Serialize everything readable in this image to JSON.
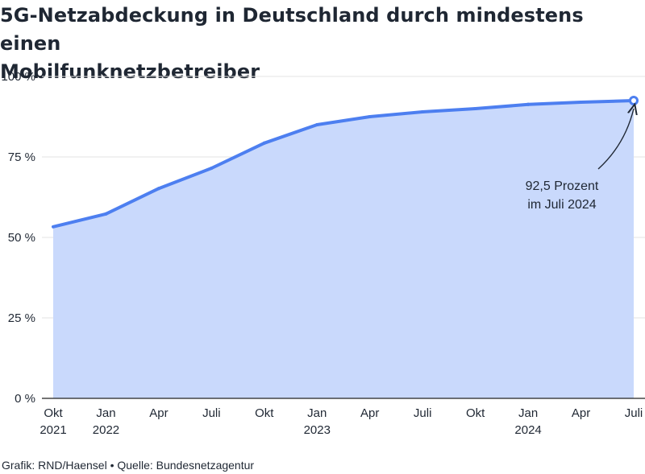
{
  "chart_data": {
    "type": "area",
    "title_lines": [
      "5G-Netzabdeckung in Deutschland durch mindestens einen",
      "Mobilfunknetzbetreiber"
    ],
    "x": [
      "Okt 2021",
      "Jan 2022",
      "Apr 2022",
      "Juli 2022",
      "Okt 2022",
      "Jan 2023",
      "Apr 2023",
      "Juli 2023",
      "Okt 2023",
      "Jan 2024",
      "Apr 2024",
      "Juli 2024"
    ],
    "x_tick_labels": [
      [
        "Okt",
        "2021"
      ],
      [
        "Jan",
        "2022"
      ],
      [
        "Apr",
        ""
      ],
      [
        "Juli",
        ""
      ],
      [
        "Okt",
        ""
      ],
      [
        "Jan",
        "2023"
      ],
      [
        "Apr",
        ""
      ],
      [
        "Juli",
        ""
      ],
      [
        "Okt",
        ""
      ],
      [
        "Jan",
        "2024"
      ],
      [
        "Apr",
        ""
      ],
      [
        "Juli",
        ""
      ]
    ],
    "series": [
      {
        "name": "5G-Netzabdeckung",
        "values": [
          53.3,
          57.3,
          65.2,
          71.5,
          79.3,
          85.0,
          87.5,
          89.0,
          90.0,
          91.3,
          92.0,
          92.5
        ]
      }
    ],
    "y_ticks": [
      0,
      25,
      50,
      75,
      100
    ],
    "y_tick_labels": [
      "0 %",
      "25 %",
      "50 %",
      "75 %",
      "100 %"
    ],
    "ylim": [
      0,
      100
    ],
    "xlabel": "",
    "ylabel": "",
    "grid": true,
    "annotation": {
      "lines": [
        "92,5 Prozent",
        "im Juli 2024"
      ],
      "target_index": 11
    },
    "colors": {
      "line": "#4d7ff0",
      "area": "#c9d9fc",
      "grid": "#e3e3e3",
      "axis": "#222222",
      "text": "#1f2733"
    }
  },
  "credit": "Grafik: RND/Haensel • Quelle: Bundesnetzagentur"
}
